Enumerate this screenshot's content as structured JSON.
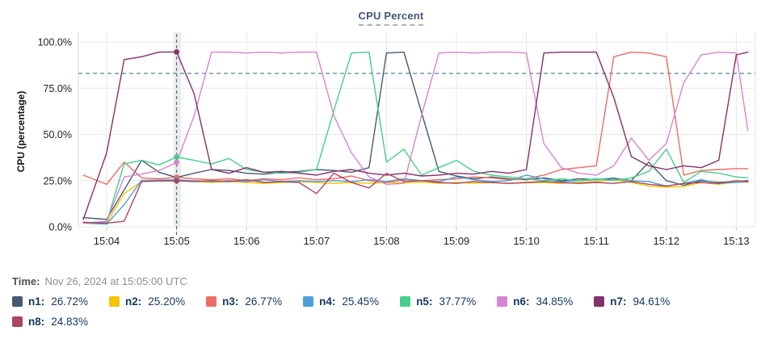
{
  "title": "CPU Percent",
  "time": {
    "label": "Time:",
    "value": "Nov 26, 2024 at 15:05:00 UTC"
  },
  "colors": {
    "grid": "#e7e7e7",
    "axis": "#d8d8d8",
    "tick": "#c9c9c9",
    "crosshair": "#44798e",
    "threshold": "#44798e",
    "highlight_band": "#ececec",
    "axis_text": "#1f1f1f",
    "legend_text": "#14375f"
  },
  "chart_data": {
    "type": "line",
    "title": "CPU Percent",
    "xlabel": "",
    "ylabel": "CPU (percentage)",
    "ylim": [
      0,
      100
    ],
    "grid": true,
    "legend_position": "bottom",
    "yticks": [
      {
        "v": 0,
        "label": "0.0%"
      },
      {
        "v": 25,
        "label": "25.0%"
      },
      {
        "v": 50,
        "label": "50.0%"
      },
      {
        "v": 75,
        "label": "75.0%"
      },
      {
        "v": 100,
        "label": "100.0%"
      }
    ],
    "xticks": [
      "15:04",
      "15:05",
      "15:06",
      "15:07",
      "15:08",
      "15:09",
      "15:10",
      "15:11",
      "15:12",
      "15:13"
    ],
    "threshold_value": 83,
    "crosshair_time": "15:05:00",
    "times": [
      "15:03:40",
      "15:04:00",
      "15:04:15",
      "15:04:30",
      "15:04:45",
      "15:05:00",
      "15:05:15",
      "15:05:30",
      "15:05:45",
      "15:06:00",
      "15:06:15",
      "15:06:30",
      "15:06:45",
      "15:07:00",
      "15:07:15",
      "15:07:30",
      "15:07:45",
      "15:08:00",
      "15:08:15",
      "15:08:30",
      "15:08:45",
      "15:09:00",
      "15:09:15",
      "15:09:30",
      "15:09:45",
      "15:10:00",
      "15:10:15",
      "15:10:30",
      "15:10:45",
      "15:11:00",
      "15:11:15",
      "15:11:30",
      "15:11:45",
      "15:12:00",
      "15:12:15",
      "15:12:30",
      "15:12:45",
      "15:13:00",
      "15:13:10"
    ],
    "series": [
      {
        "name": "n1",
        "color": "#47596f",
        "values": [
          5,
          4,
          20,
          36,
          29.5,
          26.72,
          29,
          31,
          30.5,
          29,
          28.5,
          29.5,
          30,
          31,
          30.5,
          29.5,
          32,
          94,
          94.5,
          62,
          30,
          27.5,
          26,
          27,
          26,
          25.5,
          26.5,
          25,
          26,
          25.5,
          26,
          25,
          35,
          25,
          22.5,
          25,
          24,
          24.5,
          25
        ]
      },
      {
        "name": "n2",
        "color": "#f2c500",
        "values": [
          2,
          2,
          18,
          24.5,
          24.8,
          25.2,
          24.5,
          24,
          24.5,
          24,
          23.5,
          24,
          24.5,
          24,
          23.5,
          24,
          23.5,
          24,
          23.8,
          24.2,
          23.5,
          24,
          23.6,
          24,
          23.5,
          23.8,
          24,
          23.5,
          24,
          24.5,
          25.5,
          24,
          22,
          21.5,
          21.8,
          24,
          23,
          24.5,
          24
        ]
      },
      {
        "name": "n3",
        "color": "#ee6c63",
        "values": [
          28,
          23,
          35,
          26.5,
          26,
          26.77,
          26,
          25.5,
          26,
          25,
          26,
          25.5,
          26.5,
          25.5,
          26,
          27.5,
          25,
          24,
          25.5,
          25,
          25.5,
          26,
          27,
          26.5,
          25.5,
          26,
          28,
          31,
          32,
          33,
          92,
          94.5,
          94,
          92,
          28,
          30.5,
          31,
          31.5,
          31.5
        ]
      },
      {
        "name": "n4",
        "color": "#509fd4",
        "values": [
          2,
          1.5,
          12,
          25.2,
          25.3,
          25.45,
          25,
          24.5,
          25,
          24.5,
          25.5,
          24.5,
          25,
          24.5,
          25,
          24.5,
          25.5,
          24.5,
          26,
          25,
          24.5,
          27,
          25.5,
          24.5,
          25,
          28,
          26,
          24.5,
          25,
          25.5,
          26.5,
          25,
          24.5,
          22,
          23.5,
          25.5,
          23.5,
          24,
          24.5
        ]
      },
      {
        "name": "n5",
        "color": "#45cf8c",
        "values": [
          2,
          2.5,
          34,
          36,
          33.5,
          37.77,
          36,
          34,
          37,
          31,
          29.5,
          29,
          29.5,
          31,
          63,
          94,
          94.5,
          35,
          42,
          28,
          32,
          36,
          30,
          28,
          27,
          26,
          25,
          26,
          25,
          26,
          25,
          26.5,
          30,
          42,
          24,
          30,
          29,
          27,
          26.5
        ]
      },
      {
        "name": "n6",
        "color": "#d685cf",
        "values": [
          2,
          3,
          27,
          28.5,
          30.5,
          34.85,
          60,
          94.5,
          94.5,
          94,
          94.5,
          94,
          94.5,
          94.5,
          60,
          40,
          27,
          23,
          23.5,
          60,
          94,
          94.5,
          94,
          94.5,
          94.5,
          94,
          45,
          32,
          29,
          28,
          33,
          48,
          36,
          45,
          78,
          93,
          94.5,
          94,
          52
        ]
      },
      {
        "name": "n7",
        "color": "#84306b",
        "values": [
          4,
          40,
          90.5,
          92,
          94.5,
          94.61,
          72,
          31,
          29,
          32,
          29.5,
          30,
          29,
          28,
          30,
          31,
          29,
          28,
          29,
          27.5,
          28,
          29,
          28.5,
          30,
          29,
          31,
          94,
          94.5,
          94.5,
          94.5,
          70,
          38,
          33,
          31,
          33,
          32,
          36,
          93,
          94.5
        ]
      },
      {
        "name": "n8",
        "color": "#ab4562",
        "values": [
          2.5,
          2,
          3,
          24.5,
          24.8,
          24.83,
          24.5,
          25,
          24.5,
          25.5,
          24,
          24.5,
          24,
          18,
          29,
          24,
          21,
          29,
          24.5,
          25,
          24,
          23.5,
          24.5,
          24,
          23.5,
          24,
          24.5,
          24,
          23.5,
          24,
          23.5,
          24.5,
          23,
          22,
          23.5,
          24,
          23.5,
          25,
          24.5
        ]
      }
    ]
  },
  "legend": {
    "items": [
      {
        "name": "n1:",
        "value": "26.72%",
        "color": "#47596f"
      },
      {
        "name": "n2:",
        "value": "25.20%",
        "color": "#f2c500"
      },
      {
        "name": "n3:",
        "value": "26.77%",
        "color": "#ee6c63"
      },
      {
        "name": "n4:",
        "value": "25.45%",
        "color": "#509fd4"
      },
      {
        "name": "n5:",
        "value": "37.77%",
        "color": "#45cf8c"
      },
      {
        "name": "n6:",
        "value": "34.85%",
        "color": "#d685cf"
      },
      {
        "name": "n7:",
        "value": "94.61%",
        "color": "#84306b"
      },
      {
        "name": "n8:",
        "value": "24.83%",
        "color": "#ab4562"
      }
    ]
  }
}
